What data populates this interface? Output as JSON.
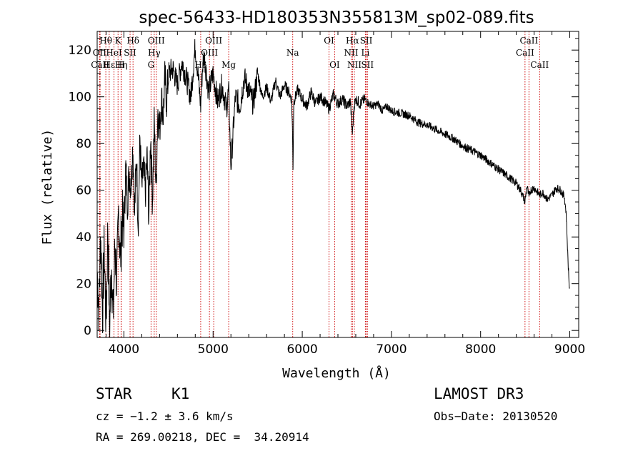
{
  "chart_data": {
    "type": "line",
    "title": "spec-56433-HD180353N355813M_sp02-089.fits",
    "xlabel": "Wavelength (Å)",
    "ylabel": "Flux (relative)",
    "xlim": [
      3700,
      9100
    ],
    "ylim": [
      -3,
      128
    ],
    "x_ticks": [
      4000,
      5000,
      6000,
      7000,
      8000,
      9000
    ],
    "y_ticks": [
      0,
      20,
      40,
      60,
      80,
      100,
      120
    ],
    "grid": false,
    "line_color": "#000000",
    "marker_color": "#cc0000",
    "series": [
      {
        "x": [
          3700,
          3720,
          3740,
          3760,
          3780,
          3800,
          3820,
          3840,
          3860,
          3880,
          3900,
          3920,
          3940,
          3960,
          3980,
          4000,
          4020,
          4040,
          4060,
          4080,
          4100,
          4120,
          4140,
          4160,
          4180,
          4200,
          4220,
          4240,
          4260,
          4280,
          4300,
          4320,
          4340,
          4360,
          4380,
          4400,
          4420,
          4440,
          4460,
          4480,
          4500,
          4550,
          4600,
          4650,
          4700,
          4750,
          4800,
          4830,
          4861,
          4880,
          4900,
          4950,
          5000,
          5050,
          5100,
          5150,
          5175,
          5184,
          5200,
          5250,
          5300,
          5350,
          5400,
          5450,
          5500,
          5550,
          5600,
          5650,
          5700,
          5750,
          5800,
          5850,
          5880,
          5890,
          5896,
          5905,
          5950,
          6000,
          6050,
          6100,
          6150,
          6200,
          6250,
          6300,
          6350,
          6400,
          6450,
          6500,
          6540,
          6563,
          6580,
          6600,
          6650,
          6700,
          6750,
          6800,
          6850,
          6900,
          6950,
          7000,
          7100,
          7200,
          7300,
          7400,
          7500,
          7600,
          7700,
          7800,
          7900,
          8000,
          8100,
          8200,
          8300,
          8400,
          8450,
          8498,
          8520,
          8542,
          8560,
          8600,
          8662,
          8700,
          8750,
          8800,
          8850,
          8900,
          8940,
          8960,
          8980,
          9000
        ],
        "y": [
          25,
          10,
          42,
          8,
          35,
          2,
          45,
          0,
          30,
          5,
          38,
          18,
          52,
          30,
          48,
          42,
          70,
          55,
          68,
          62,
          80,
          50,
          75,
          45,
          82,
          60,
          70,
          58,
          75,
          48,
          85,
          55,
          90,
          60,
          95,
          85,
          100,
          92,
          108,
          98,
          110,
          112,
          105,
          115,
          108,
          100,
          122,
          110,
          96,
          112,
          118,
          102,
          110,
          98,
          105,
          95,
          103,
          90,
          70,
          100,
          96,
          108,
          103,
          97,
          110,
          100,
          104,
          98,
          107,
          100,
          105,
          102,
          99,
          86,
          70,
          98,
          103,
          99,
          96,
          102,
          97,
          100,
          98,
          95,
          101,
          97,
          99,
          96,
          98,
          84,
          96,
          99,
          97,
          99,
          97,
          96,
          97,
          94,
          96,
          94,
          93,
          92,
          89,
          88,
          86,
          84,
          82,
          79,
          77,
          75,
          72,
          69,
          66,
          63,
          60,
          55,
          62,
          57,
          60,
          61,
          58,
          59,
          56,
          58,
          61,
          60,
          57,
          50,
          30,
          15
        ]
      }
    ],
    "spectral_lines": [
      {
        "label": "Hθ",
        "wavelength": 3797,
        "row": 1
      },
      {
        "label": "OII",
        "wavelength": 3727,
        "row": 2
      },
      {
        "label": "Hε",
        "wavelength": 3835,
        "row": 3
      },
      {
        "label": "CaII",
        "wavelength": 3733,
        "row": 3
      },
      {
        "label": "HeI",
        "wavelength": 3889,
        "row": 2
      },
      {
        "label": "K",
        "wavelength": 3934,
        "row": 1
      },
      {
        "label": "Hη",
        "wavelength": 3970,
        "row": 3
      },
      {
        "label": "H",
        "wavelength": 3968,
        "row": 3
      },
      {
        "label": "SII",
        "wavelength": 4069,
        "row": 2
      },
      {
        "label": "Hδ",
        "wavelength": 4102,
        "row": 1
      },
      {
        "label": "OIII",
        "wavelength": 4363,
        "row": 1
      },
      {
        "label": "Hγ",
        "wavelength": 4340,
        "row": 2
      },
      {
        "label": "G",
        "wavelength": 4304,
        "row": 3
      },
      {
        "label": "OIII",
        "wavelength": 5007,
        "row": 1
      },
      {
        "label": "OIII",
        "wavelength": 4959,
        "row": 2
      },
      {
        "label": "Hβ",
        "wavelength": 4861,
        "row": 3
      },
      {
        "label": "Mg",
        "wavelength": 5175,
        "row": 3
      },
      {
        "label": "Na",
        "wavelength": 5893,
        "row": 2
      },
      {
        "label": "OI",
        "wavelength": 6300,
        "row": 1
      },
      {
        "label": "OI",
        "wavelength": 6363,
        "row": 3
      },
      {
        "label": "Hα",
        "wavelength": 6563,
        "row": 1
      },
      {
        "label": "SII",
        "wavelength": 6717,
        "row": 1
      },
      {
        "label": "NII",
        "wavelength": 6548,
        "row": 2
      },
      {
        "label": "Li",
        "wavelength": 6708,
        "row": 2
      },
      {
        "label": "NII",
        "wavelength": 6584,
        "row": 3
      },
      {
        "label": "SII",
        "wavelength": 6731,
        "row": 3
      },
      {
        "label": "CaII",
        "wavelength": 8542,
        "row": 1
      },
      {
        "label": "CaII",
        "wavelength": 8498,
        "row": 2
      },
      {
        "label": "CaII",
        "wavelength": 8662,
        "row": 3
      }
    ]
  },
  "info": {
    "class": "STAR",
    "subclass": "K1",
    "survey": "LAMOST DR3",
    "cz": "cz = −1.2 ± 3.6 km/s",
    "obs_date": "Obs−Date: 20130520",
    "radec": "RA = 269.00218, DEC =  34.20914"
  }
}
